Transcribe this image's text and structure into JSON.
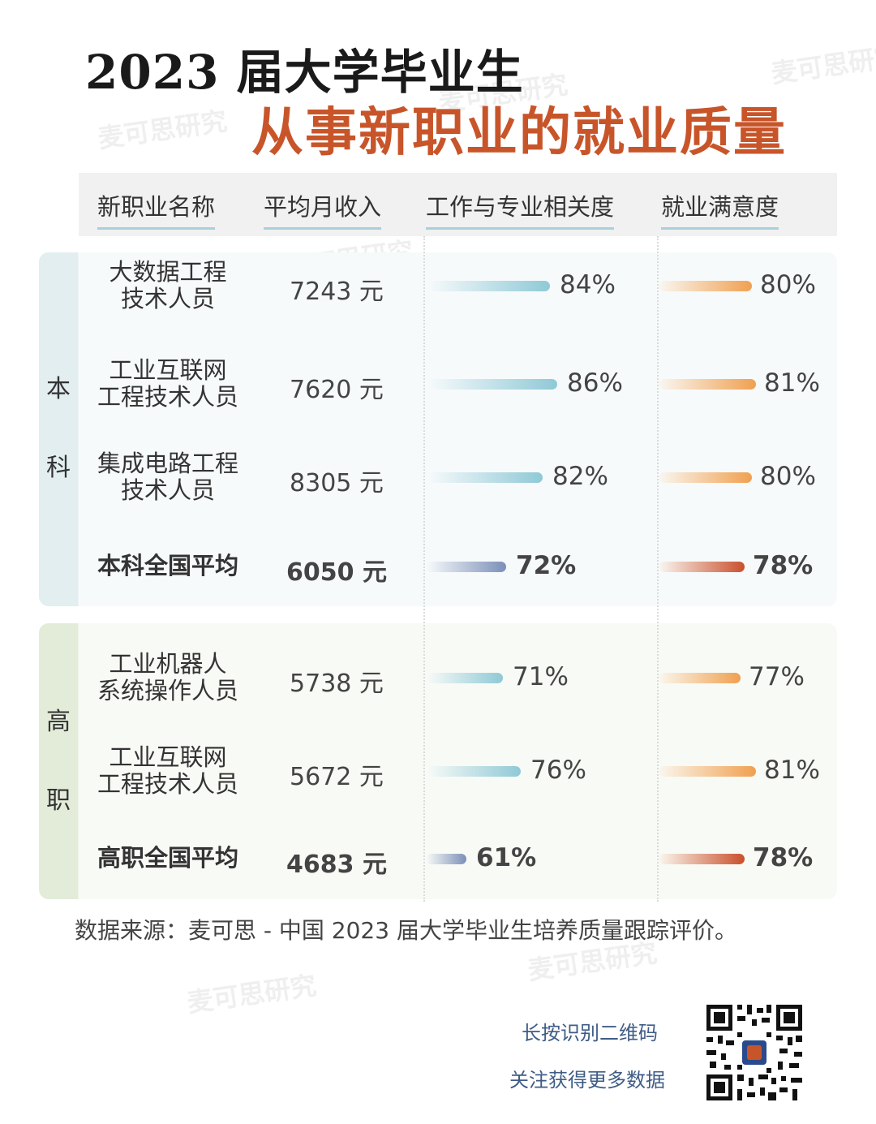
{
  "title": {
    "line1": "2023 届大学毕业生",
    "line2": "从事新职业的就业质量"
  },
  "columns": {
    "name": "新职业名称",
    "income": "平均月收入",
    "relevance": "工作与专业相关度",
    "satisfaction": "就业满意度"
  },
  "groups": {
    "undergrad": {
      "label_1": "本",
      "label_2": "科"
    },
    "vocational": {
      "label_1": "高",
      "label_2": "职"
    }
  },
  "rows": [
    {
      "name_1": "大数据工程",
      "name_2": "技术人员",
      "income": "7243 元",
      "relevance_label": "84%",
      "satisfaction_label": "80%"
    },
    {
      "name_1": "工业互联网",
      "name_2": "工程技术人员",
      "income": "7620 元",
      "relevance_label": "86%",
      "satisfaction_label": "81%"
    },
    {
      "name_1": "集成电路工程",
      "name_2": "技术人员",
      "income": "8305 元",
      "relevance_label": "82%",
      "satisfaction_label": "80%"
    },
    {
      "name_1": "本科全国平均",
      "name_2": "",
      "income": "6050 元",
      "relevance_label": "72%",
      "satisfaction_label": "78%"
    },
    {
      "name_1": "工业机器人",
      "name_2": "系统操作人员",
      "income": "5738 元",
      "relevance_label": "71%",
      "satisfaction_label": "77%"
    },
    {
      "name_1": "工业互联网",
      "name_2": "工程技术人员",
      "income": "5672 元",
      "relevance_label": "76%",
      "satisfaction_label": "81%"
    },
    {
      "name_1": "高职全国平均",
      "name_2": "",
      "income": "4683 元",
      "relevance_label": "61%",
      "satisfaction_label": "78%"
    }
  ],
  "chart_data": {
    "type": "table",
    "columns": [
      "新职业名称",
      "平均月收入",
      "工作与专业相关度",
      "就业满意度"
    ],
    "groups": [
      {
        "name": "本科",
        "rows": [
          {
            "occupation": "大数据工程技术人员",
            "income": 7243,
            "relevance": 84,
            "satisfaction": 80
          },
          {
            "occupation": "工业互联网工程技术人员",
            "income": 7620,
            "relevance": 86,
            "satisfaction": 81
          },
          {
            "occupation": "集成电路工程技术人员",
            "income": 8305,
            "relevance": 82,
            "satisfaction": 80
          },
          {
            "occupation": "本科全国平均",
            "income": 6050,
            "relevance": 72,
            "satisfaction": 78
          }
        ]
      },
      {
        "name": "高职",
        "rows": [
          {
            "occupation": "工业机器人系统操作人员",
            "income": 5738,
            "relevance": 71,
            "satisfaction": 77
          },
          {
            "occupation": "工业互联网工程技术人员",
            "income": 5672,
            "relevance": 76,
            "satisfaction": 81
          },
          {
            "occupation": "高职全国平均",
            "income": 4683,
            "relevance": 61,
            "satisfaction": 78
          }
        ]
      }
    ],
    "colors": {
      "relevance_bar": "#8fc9d6",
      "relevance_avg_bar": "#7b8fb8",
      "satisfaction_bar": "#f0a050",
      "satisfaction_avg_bar": "#c9502c"
    }
  },
  "source": "数据来源：麦可思 - 中国 2023 届大学毕业生培养质量跟踪评价。",
  "qr": {
    "line1": "长按识别二维码",
    "line2": "关注获得更多数据"
  },
  "watermark": "麦可思研究"
}
